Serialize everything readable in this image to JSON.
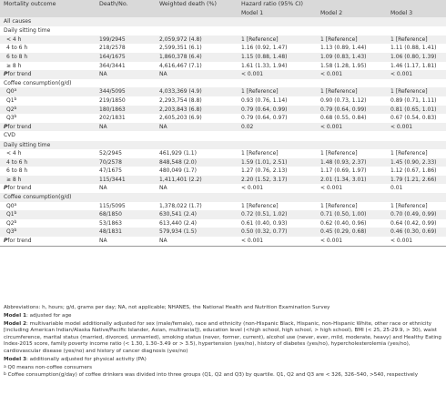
{
  "header": {
    "col0": "Mortality outcome",
    "col1": "Death/No.",
    "col2": "Weighted death (%)",
    "col3": "Hazard ratio (95% CI)",
    "model1": "Model 1",
    "model2": "Model 2",
    "model3": "Model 3"
  },
  "sections": {
    "all_causes": "All causes",
    "cvd": "CVD"
  },
  "labels": {
    "sitting": "Daily sitting time",
    "coffee": "Coffee consumption(g/d)",
    "pfor": "P",
    "pfor_rest": "for trend"
  },
  "all_rows": [
    {
      "label": "< 4 h",
      "deaths": "199/2945",
      "weighted": "2,059,972 (4.8)",
      "m1": "1 [Reference]",
      "m2": "1 [Reference]",
      "m3": "1 [Reference]"
    },
    {
      "label": "4 to 6 h",
      "deaths": "218/2578",
      "weighted": "2,599,351 (6.1)",
      "m1": "1.16 (0.92, 1.47)",
      "m2": "1.13 (0.89, 1.44)",
      "m3": "1.11 (0.88, 1.41)"
    },
    {
      "label": "6 to 8 h",
      "deaths": "164/1675",
      "weighted": "1,860,378 (6.4)",
      "m1": "1.15 (0.88, 1.48)",
      "m2": "1.09 (0.83, 1.43)",
      "m3": "1.06 (0.80, 1.39)"
    },
    {
      "label": "≥ 8 h",
      "deaths": "364/3441",
      "weighted": "4,616,467 (7.1)",
      "m1": "1.61 (1.33, 1.94)",
      "m2": "1.58 (1.28, 1.95)",
      "m3": "1.46 (1.17, 1.81)"
    },
    {
      "label": "",
      "deaths": "NA",
      "weighted": "NA",
      "m1": "< 0.001",
      "m2": "< 0.001",
      "m3": "< 0.001"
    },
    {
      "label": "",
      "deaths": "",
      "weighted": "",
      "m1": "",
      "m2": "",
      "m3": ""
    },
    {
      "label": "Q0",
      "deaths": "344/5095",
      "weighted": "4,033,369 (4.9)",
      "m1": "1 [Reference]",
      "m2": "1 [Reference]",
      "m3": "1 [Reference]"
    },
    {
      "label": "Q1",
      "deaths": "219/1850",
      "weighted": "2,293,754 (8.8)",
      "m1": "0.93 (0.76, 1.14)",
      "m2": "0.90 (0.73, 1.12)",
      "m3": "0.89 (0.71, 1.11)"
    },
    {
      "label": "Q2",
      "deaths": "180/1863",
      "weighted": "2,203,843 (6.8)",
      "m1": "0.79 (0.64, 0.99)",
      "m2": "0.79 (0.64, 0.99)",
      "m3": "0.81 (0.65, 1.01)"
    },
    {
      "label": "Q3",
      "deaths": "202/1831",
      "weighted": "2,605,203 (6.9)",
      "m1": "0.79 (0.64, 0.97)",
      "m2": "0.68 (0.55, 0.84)",
      "m3": "0.67 (0.54, 0.83)"
    },
    {
      "label": "",
      "deaths": "NA",
      "weighted": "NA",
      "m1": "0.02",
      "m2": "< 0.001",
      "m3": "< 0.001"
    }
  ],
  "cvd_rows": [
    {
      "label": "< 4 h",
      "deaths": "52/2945",
      "weighted": "461,929 (1.1)",
      "m1": "1 [Reference]",
      "m2": "1 [Reference]",
      "m3": "1 [Reference]"
    },
    {
      "label": "4 to 6 h",
      "deaths": "70/2578",
      "weighted": "848,548 (2.0)",
      "m1": "1.59 (1.01, 2.51)",
      "m2": "1.48 (0.93, 2.37)",
      "m3": "1.45 (0.90, 2.33)"
    },
    {
      "label": "6 to 8 h",
      "deaths": "47/1675",
      "weighted": "480,049 (1.7)",
      "m1": "1.27 (0.76, 2.13)",
      "m2": "1.17 (0.69, 1.97)",
      "m3": "1.12 (0.67, 1.86)"
    },
    {
      "label": "≥ 8 h",
      "deaths": "115/3441",
      "weighted": "1,411,401 (2.2)",
      "m1": "2.20 (1.52, 3.17)",
      "m2": "2.01 (1.34, 3.01)",
      "m3": "1.79 (1.21, 2.66)"
    },
    {
      "label": "",
      "deaths": "NA",
      "weighted": "NA",
      "m1": "< 0.001",
      "m2": "< 0.001",
      "m3": "0.01"
    },
    {
      "label": "",
      "deaths": "",
      "weighted": "",
      "m1": "",
      "m2": "",
      "m3": ""
    },
    {
      "label": "Q0",
      "deaths": "115/5095",
      "weighted": "1,378,022 (1.7)",
      "m1": "1 [Reference]",
      "m2": "1 [Reference]",
      "m3": "1 [Reference]"
    },
    {
      "label": "Q1",
      "deaths": "68/1850",
      "weighted": "630,541 (2.4)",
      "m1": "0.72 (0.51, 1.02)",
      "m2": "0.71 (0.50, 1.00)",
      "m3": "0.70 (0.49, 0.99)"
    },
    {
      "label": "Q2",
      "deaths": "53/1863",
      "weighted": "613,440 (2.4)",
      "m1": "0.61 (0.40, 0.93)",
      "m2": "0.62 (0.40, 0.96)",
      "m3": "0.64 (0.42, 0.99)"
    },
    {
      "label": "Q3",
      "deaths": "48/1831",
      "weighted": "579,934 (1.5)",
      "m1": "0.50 (0.32, 0.77)",
      "m2": "0.45 (0.29, 0.68)",
      "m3": "0.46 (0.30, 0.69)"
    },
    {
      "label": "",
      "deaths": "NA",
      "weighted": "NA",
      "m1": "< 0.001",
      "m2": "< 0.001",
      "m3": "< 0.001"
    }
  ],
  "notes": {
    "abbrev": "Abbreviations: h, hours; g/d, grams per day; NA, not applicable; NHANES, the National Health and Nutrition Examination Survey",
    "m1_label": "Model 1",
    "m1_text": ": adjusted for age",
    "m2_label": "Model 2",
    "m2_text": ": multivariable model additionally adjusted for sex (male/female), race and ethnicity (non-Hispanic Black, Hispanic, non-Hispanic White, other race or ethnicity [including American Indian/Alaska Native/Pacific Islander, Asian, multiracial]), education level (<high school, high school, > high school), BMI (< 25, 25-29.9, > 30), waist circumference, marital status (married, divorced, unmarried), smoking status (never, former, current), alcohol use (never, ever, mild, moderate, heavy) and Healthy Eating Index-2015 score, family poverty income ratio (< 1.30, 1.30–3.49 or > 3.5), hypertension (yes/no), history of diabetes (yes/no), hypercholesterolemia (yes/no), cardiovascular disease (yes/no) and history of cancer diagnosis (yes/no)",
    "m3_label": "Model 3",
    "m3_text": ": additionally adjusted for physical activity (PA)",
    "a_sup": "a",
    "a_text": " Q0 means non-coffee consumers",
    "b_sup": "b",
    "b_text": " Coffee consumption(g/day) of coffee drinkers was divided into three groups (Q1, Q2 and Q3) by quartile. Q1, Q2 and Q3 are < 326, 326–540, >540, respectively"
  },
  "sups": {
    "a": "a",
    "b": "b"
  },
  "colors": {
    "header_bg": "#d9d9d9",
    "band_bg": "#efefef",
    "text": "#333333"
  }
}
